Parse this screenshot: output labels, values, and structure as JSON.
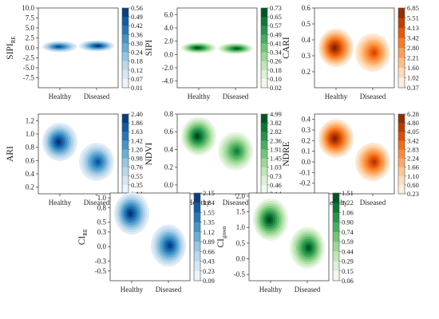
{
  "chart_data": [
    {
      "type": "heatmap",
      "ylabel": "SIPI",
      "ylabel_sub": "RE",
      "categories": [
        "Healthy",
        "Diseased"
      ],
      "ylim": [
        -10,
        10
      ],
      "yticks": [
        "10.0",
        "7.5",
        "5.0",
        "2.5",
        "0.0",
        "-2.5",
        "-5.0",
        "-7.5"
      ],
      "colorbar": [
        "0.56",
        "0.49",
        "0.42",
        "0.36",
        "0.30",
        "0.24",
        "0.18",
        "0.12",
        "0.07",
        "0.01"
      ],
      "colormap": "blue",
      "peaks": [
        {
          "x": 0,
          "y": 0.3,
          "weight": 0.9
        },
        {
          "x": 1,
          "y": 0.5,
          "weight": 1.0
        }
      ]
    },
    {
      "type": "heatmap",
      "ylabel": "SIPI",
      "ylabel_sub": "",
      "categories": [
        "Healthy",
        "Diseased"
      ],
      "ylim": [
        -5,
        7
      ],
      "yticks": [
        "6.0",
        "4.0",
        "2.0",
        "0.0",
        "-2.0",
        "-4.0"
      ],
      "colorbar": [
        "0.73",
        "0.65",
        "0.57",
        "0.49",
        "0.41",
        "0.34",
        "0.26",
        "0.18",
        "0.10",
        "0.02"
      ],
      "colormap": "green",
      "peaks": [
        {
          "x": 0,
          "y": 1.0,
          "weight": 1.0
        },
        {
          "x": 1,
          "y": 0.9,
          "weight": 0.95
        }
      ]
    },
    {
      "type": "heatmap",
      "ylabel": "CARI",
      "ylabel_sub": "",
      "categories": [
        "Healthy",
        "Diseased"
      ],
      "ylim": [
        0.1,
        0.6
      ],
      "yticks": [
        "0.6",
        "0.5",
        "0.4",
        "0.3",
        "0.2"
      ],
      "colorbar": [
        "6.85",
        "5.51",
        "4.13",
        "3.42",
        "2.80",
        "2.21",
        "1.60",
        "1.02",
        "0.37"
      ],
      "colormap": "orange",
      "peaks": [
        {
          "x": 0,
          "y": 0.35,
          "weight": 1.0
        },
        {
          "x": 1,
          "y": 0.32,
          "weight": 0.75
        }
      ]
    },
    {
      "type": "heatmap",
      "ylabel": "ARI",
      "ylabel_sub": "",
      "categories": [
        "Healthy",
        "Diseased"
      ],
      "ylim": [
        0.1,
        1.3
      ],
      "yticks": [
        "1.2",
        "1.0",
        "0.8",
        "0.6",
        "0.4",
        "0.2"
      ],
      "colorbar": [
        "2.40",
        "1.86",
        "1.63",
        "1.42",
        "1.20",
        "0.98",
        "0.76",
        "0.55",
        "0.35",
        "0.14"
      ],
      "colormap": "blue",
      "peaks": [
        {
          "x": 0,
          "y": 0.88,
          "weight": 1.0
        },
        {
          "x": 1,
          "y": 0.58,
          "weight": 0.85
        }
      ]
    },
    {
      "type": "heatmap",
      "ylabel": "NDVI",
      "ylabel_sub": "",
      "categories": [
        "Healthy",
        "Diseased"
      ],
      "ylim": [
        -0.1,
        0.8
      ],
      "yticks": [
        "0.8",
        "0.6",
        "0.4",
        "0.2",
        "0.0"
      ],
      "colorbar": [
        "4.99",
        "3.82",
        "2.82",
        "2.36",
        "1.91",
        "1.45",
        "1.03",
        "0.73",
        "0.46",
        "0.14"
      ],
      "colormap": "green",
      "peaks": [
        {
          "x": 0,
          "y": 0.55,
          "weight": 1.0
        },
        {
          "x": 1,
          "y": 0.38,
          "weight": 0.8
        }
      ]
    },
    {
      "type": "heatmap",
      "ylabel": "NDRE",
      "ylabel_sub": "",
      "categories": [
        "Healthy",
        "Diseased"
      ],
      "ylim": [
        -0.3,
        0.45
      ],
      "yticks": [
        "0.4",
        "0.3",
        "0.2",
        "0.1",
        "0.0",
        "-0.1",
        "-0.2"
      ],
      "colorbar": [
        "6.28",
        "4.80",
        "4.05",
        "3.42",
        "2.83",
        "2.24",
        "1.66",
        "1.10",
        "0.60",
        "0.23"
      ],
      "colormap": "orange",
      "peaks": [
        {
          "x": 0,
          "y": 0.22,
          "weight": 1.0
        },
        {
          "x": 1,
          "y": 0.0,
          "weight": 0.85
        }
      ]
    },
    {
      "type": "heatmap",
      "ylabel": "CI",
      "ylabel_sub": "RE",
      "categories": [
        "Healthy",
        "Diseased"
      ],
      "ylim": [
        -0.7,
        1.1
      ],
      "yticks": [
        "1.0",
        "0.8",
        "0.5",
        "0.3",
        "0.0",
        "-0.3",
        "-0.5"
      ],
      "colorbar": [
        "2.15",
        "1.84",
        "1.55",
        "1.35",
        "1.12",
        "0.89",
        "0.66",
        "0.43",
        "0.23",
        "0.09"
      ],
      "colormap": "blue",
      "peaks": [
        {
          "x": 0,
          "y": 0.68,
          "weight": 1.0
        },
        {
          "x": 1,
          "y": 0.02,
          "weight": 0.95
        }
      ]
    },
    {
      "type": "heatmap",
      "ylabel": "CI",
      "ylabel_sub": "green",
      "categories": [
        "Healthy",
        "Diseased"
      ],
      "ylim": [
        -0.7,
        2.1
      ],
      "yticks": [
        "2.0",
        "1.5",
        "1.0",
        "0.5",
        "0.0",
        "-0.5"
      ],
      "colorbar": [
        "1.51",
        "1.22",
        "1.06",
        "0.90",
        "0.74",
        "0.59",
        "0.44",
        "0.29",
        "0.15",
        "0.06"
      ],
      "colormap": "green",
      "peaks": [
        {
          "x": 0,
          "y": 1.25,
          "weight": 1.0
        },
        {
          "x": 1,
          "y": 0.35,
          "weight": 0.95
        }
      ]
    }
  ],
  "colormaps": {
    "blue": [
      "#f7fbff",
      "#deebf7",
      "#c6dbef",
      "#9ecae1",
      "#6baed6",
      "#4292c6",
      "#2171b5",
      "#08519c",
      "#08306b"
    ],
    "green": [
      "#f7fcf5",
      "#e5f5e0",
      "#c7e9c0",
      "#a1d99b",
      "#74c476",
      "#41ab5d",
      "#238b45",
      "#006d2c",
      "#00441b"
    ],
    "orange": [
      "#fff5eb",
      "#fee6ce",
      "#fdd0a2",
      "#fdae6b",
      "#fd8d3c",
      "#f16913",
      "#d94801",
      "#a63603",
      "#7f2704"
    ]
  }
}
